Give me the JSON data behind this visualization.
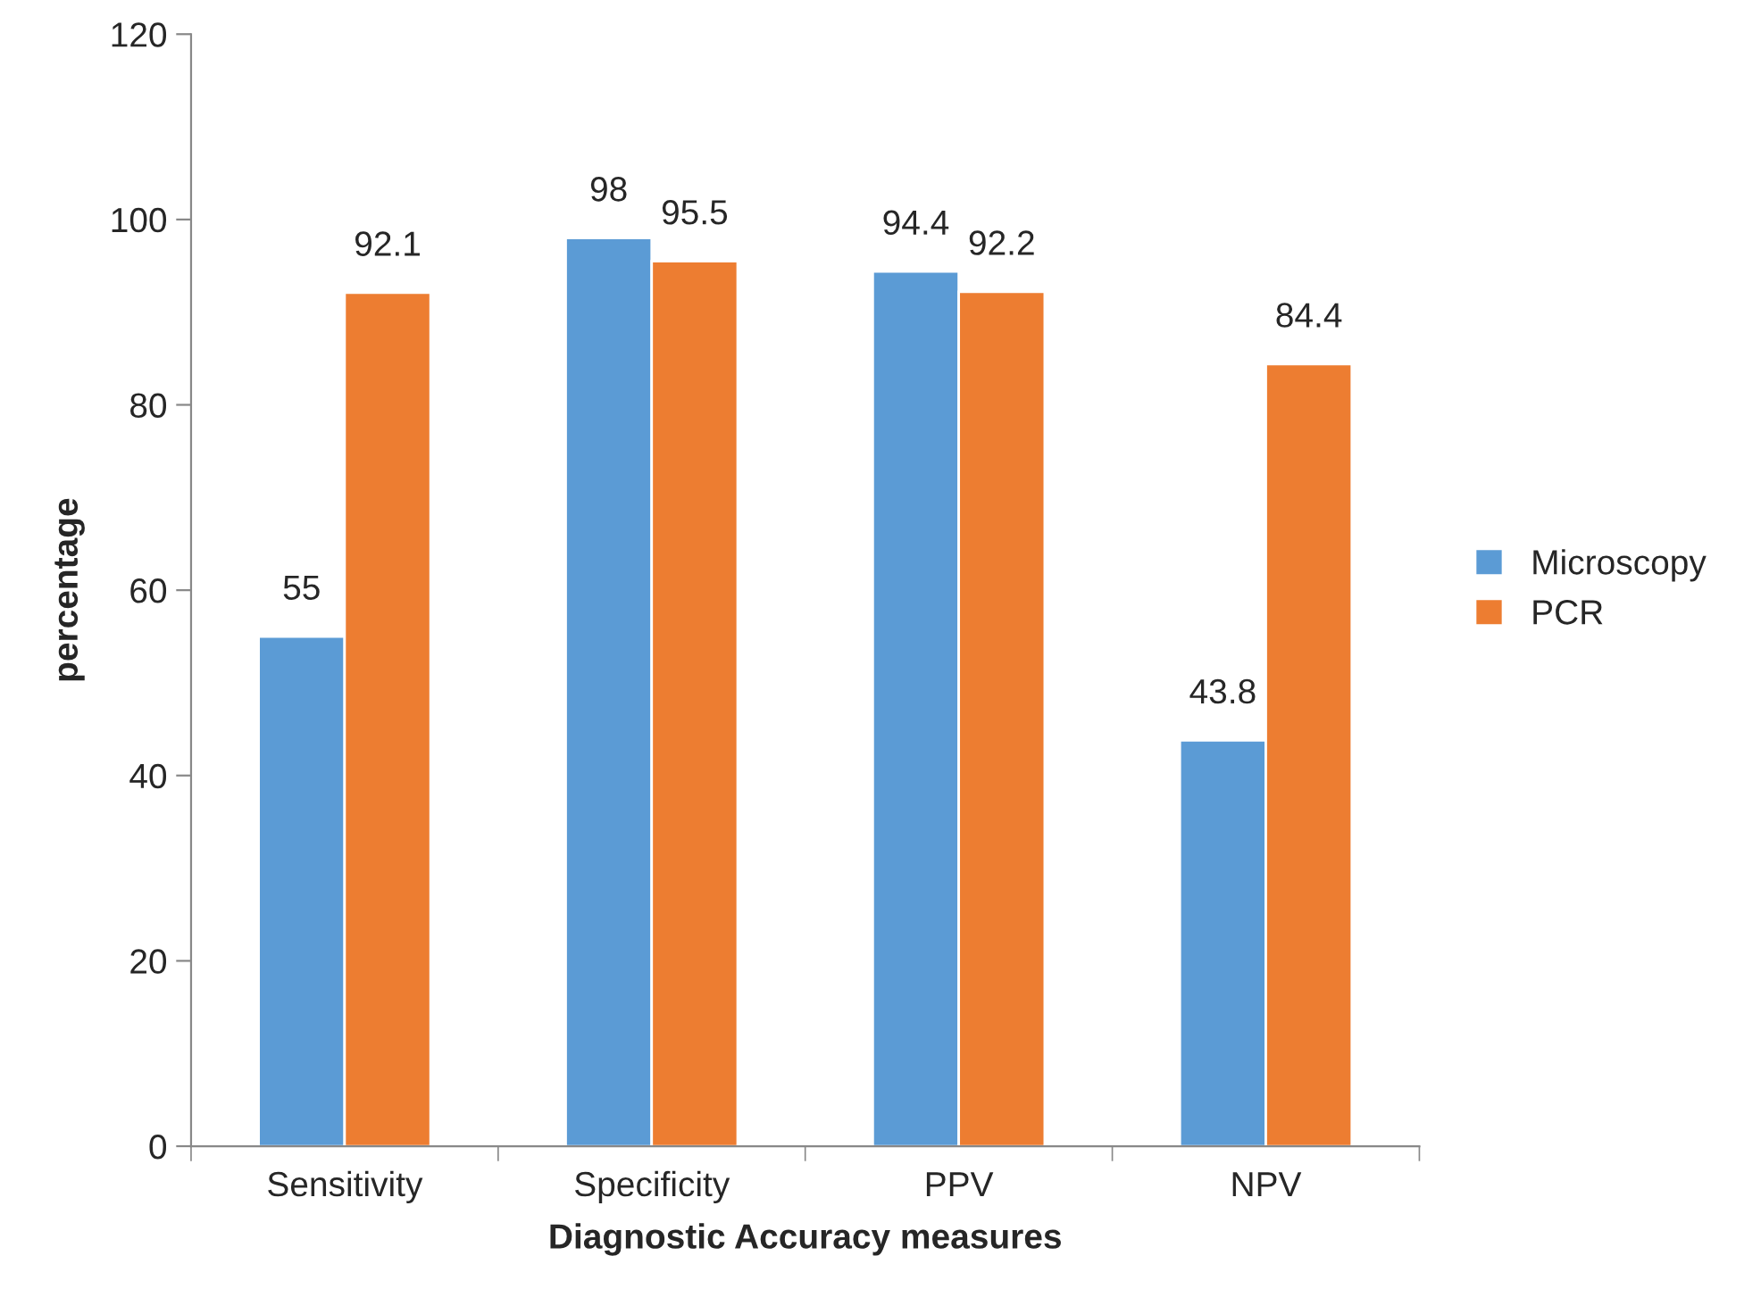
{
  "chart_data": {
    "type": "bar",
    "xlabel": "Diagnostic Accuracy measures",
    "ylabel": "percentage",
    "categories": [
      "Sensitivity",
      "Specificity",
      "PPV",
      "NPV"
    ],
    "series": [
      {
        "name": "Microscopy",
        "color": "#5b9bd5",
        "values": [
          55,
          98,
          94.4,
          43.8
        ]
      },
      {
        "name": "PCR",
        "color": "#ed7d31",
        "values": [
          92.1,
          95.5,
          92.2,
          84.4
        ]
      }
    ],
    "ylim": [
      0,
      120
    ],
    "yticks": [
      0,
      20,
      40,
      60,
      80,
      100,
      120
    ],
    "grid": false,
    "legend": "right",
    "data_labels": true
  }
}
